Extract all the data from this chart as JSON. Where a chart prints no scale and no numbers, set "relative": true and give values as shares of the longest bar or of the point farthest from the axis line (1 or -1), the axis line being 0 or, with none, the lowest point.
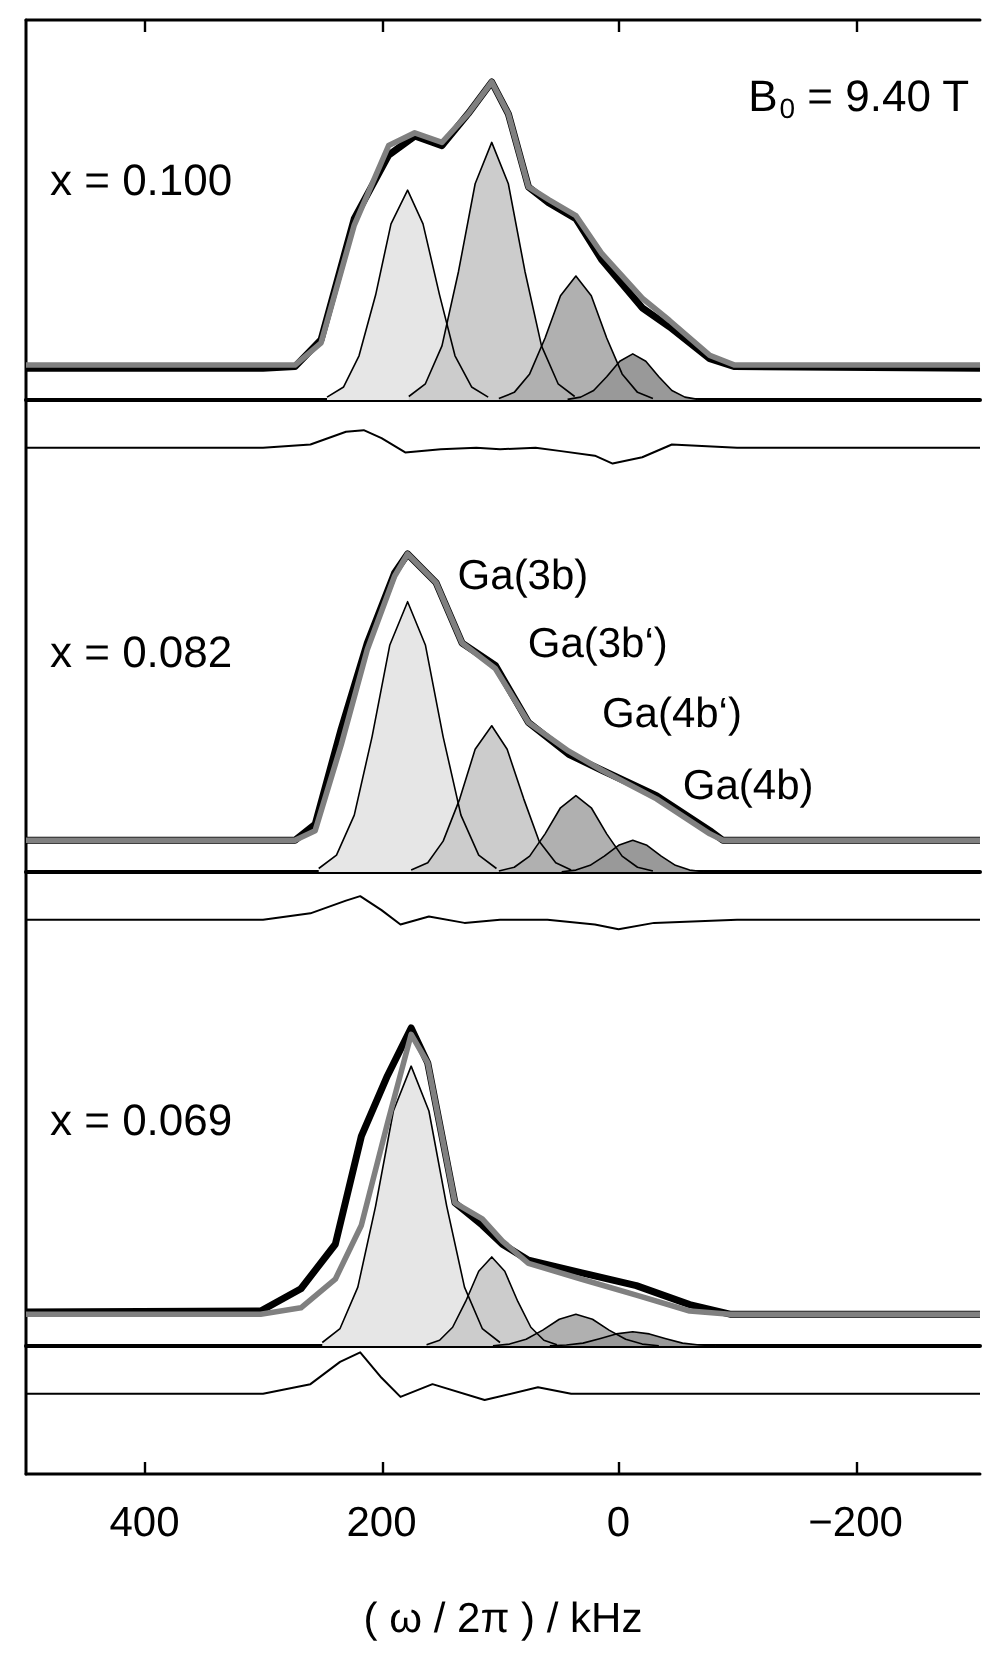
{
  "chart_data": [
    {
      "type": "line",
      "relative": true,
      "xlim": [
        500,
        -305
      ],
      "xticks": [
        {
          "value": 400,
          "label": null
        },
        {
          "value": 200,
          "label": null
        },
        {
          "value": 0,
          "label": null
        },
        {
          "value": -200,
          "label": null
        }
      ],
      "tick_labels": false,
      "legend": false,
      "grid": false,
      "annotations": [
        "x = 0.100",
        "B$_{0}$ = 9.40 T"
      ],
      "series": [
        {
          "type": "area",
          "color": "#e6e6e6",
          "x": [
            246,
            232,
            219,
            205,
            192,
            178,
            165,
            151,
            138,
            124,
            110
          ],
          "values": [
            0.009,
            0.041,
            0.139,
            0.33,
            0.554,
            0.66,
            0.554,
            0.33,
            0.139,
            0.041,
            0.009
          ]
        },
        {
          "type": "area",
          "color": "#cccccc",
          "x": [
            177,
            163,
            149,
            135,
            121,
            107,
            93,
            79,
            65,
            51,
            37
          ],
          "values": [
            0.011,
            0.051,
            0.17,
            0.405,
            0.68,
            0.81,
            0.68,
            0.405,
            0.17,
            0.051,
            0.011
          ]
        },
        {
          "type": "area",
          "color": "#b0b0b0",
          "x": [
            101,
            88,
            75,
            62,
            49,
            36,
            23,
            10,
            -3,
            -16,
            -29
          ],
          "values": [
            0.005,
            0.024,
            0.082,
            0.195,
            0.328,
            0.39,
            0.328,
            0.195,
            0.082,
            0.024,
            0.005
          ]
        },
        {
          "type": "area",
          "color": "#999999",
          "x": [
            43,
            32,
            21,
            10,
            -1,
            -12,
            -23,
            -34,
            -45,
            -56,
            -67
          ],
          "values": [
            0.002,
            0.009,
            0.03,
            0.073,
            0.122,
            0.145,
            0.122,
            0.073,
            0.03,
            0.009,
            0.002
          ]
        },
        {
          "type": "line",
          "color": "#000000",
          "x": [
            500,
            300,
            273,
            251,
            223,
            194,
            172,
            149,
            127,
            107,
            93,
            76,
            59,
            36,
            14,
            -20,
            -43,
            -77,
            -98,
            -305
          ],
          "values": [
            0.1,
            0.1,
            0.105,
            0.19,
            0.57,
            0.77,
            0.83,
            0.8,
            0.9,
            1.0,
            0.9,
            0.67,
            0.62,
            0.57,
            0.44,
            0.29,
            0.23,
            0.13,
            0.105,
            0.1
          ]
        },
        {
          "type": "line",
          "color": "#808080",
          "x": [
            500,
            300,
            273,
            251,
            223,
            194,
            172,
            149,
            127,
            107,
            93,
            76,
            59,
            36,
            14,
            -20,
            -43,
            -77,
            -98,
            -305
          ],
          "values": [
            0.11,
            0.11,
            0.11,
            0.18,
            0.55,
            0.8,
            0.84,
            0.81,
            0.9,
            1.0,
            0.9,
            0.67,
            0.63,
            0.58,
            0.46,
            0.32,
            0.25,
            0.14,
            0.11,
            0.11
          ]
        },
        {
          "type": "line",
          "color": "#000000",
          "x": [
            500,
            300,
            260,
            230,
            215,
            200,
            180,
            150,
            120,
            100,
            70,
            50,
            20,
            5,
            -20,
            -45,
            -100,
            -305
          ],
          "values": [
            -0.15,
            -0.15,
            -0.14,
            -0.1,
            -0.095,
            -0.12,
            -0.165,
            -0.155,
            -0.15,
            -0.155,
            -0.15,
            -0.16,
            -0.175,
            -0.2,
            -0.18,
            -0.14,
            -0.15,
            -0.15
          ]
        }
      ]
    },
    {
      "type": "line",
      "relative": true,
      "xlim": [
        500,
        -305
      ],
      "tick_labels": false,
      "legend": false,
      "grid": false,
      "annotations": [
        "x = 0.082"
      ],
      "series": [
        {
          "type": "area",
          "name": "Ga(3b)",
          "color": "#e6e6e6",
          "x": [
            253,
            238,
            223,
            208,
            193,
            178,
            163,
            148,
            133,
            118,
            103
          ],
          "values": [
            0.011,
            0.053,
            0.179,
            0.425,
            0.714,
            0.85,
            0.714,
            0.425,
            0.179,
            0.053,
            0.011
          ]
        },
        {
          "type": "area",
          "name": "Ga(3b‘)",
          "color": "#cccccc",
          "x": [
            175,
            161,
            148,
            134,
            121,
            107,
            94,
            80,
            67,
            53,
            40
          ],
          "values": [
            0.006,
            0.029,
            0.097,
            0.23,
            0.386,
            0.46,
            0.386,
            0.23,
            0.097,
            0.029,
            0.006
          ]
        },
        {
          "type": "area",
          "name": "Ga(4b‘)",
          "color": "#b0b0b0",
          "x": [
            101,
            88,
            75,
            62,
            49,
            36,
            23,
            10,
            -3,
            -16,
            -29
          ],
          "values": [
            0.003,
            0.015,
            0.05,
            0.12,
            0.202,
            0.24,
            0.202,
            0.12,
            0.05,
            0.015,
            0.003
          ]
        },
        {
          "type": "area",
          "name": "Ga(4b)",
          "color": "#999999",
          "x": [
            48,
            36,
            24,
            12,
            0,
            -12,
            -24,
            -36,
            -48,
            -60,
            -72
          ],
          "values": [
            0.001,
            0.006,
            0.021,
            0.05,
            0.084,
            0.1,
            0.084,
            0.05,
            0.021,
            0.006,
            0.001
          ]
        },
        {
          "type": "line",
          "color": "#000000",
          "x": [
            500,
            300,
            273,
            256,
            234,
            212,
            189,
            178,
            154,
            132,
            104,
            76,
            42,
            14,
            -32,
            -77,
            -88,
            -305
          ],
          "values": [
            0.1,
            0.1,
            0.1,
            0.15,
            0.45,
            0.72,
            0.94,
            1.0,
            0.91,
            0.72,
            0.65,
            0.47,
            0.37,
            0.32,
            0.24,
            0.13,
            0.1,
            0.1
          ]
        },
        {
          "type": "line",
          "color": "#808080",
          "x": [
            500,
            300,
            273,
            256,
            234,
            212,
            189,
            178,
            154,
            132,
            104,
            76,
            42,
            14,
            -32,
            -77,
            -88,
            -305
          ],
          "values": [
            0.1,
            0.1,
            0.1,
            0.13,
            0.4,
            0.7,
            0.93,
            1.0,
            0.91,
            0.72,
            0.64,
            0.47,
            0.38,
            0.32,
            0.23,
            0.12,
            0.1,
            0.1
          ]
        },
        {
          "type": "line",
          "color": "#000000",
          "x": [
            500,
            300,
            260,
            230,
            218,
            200,
            184,
            160,
            130,
            100,
            60,
            20,
            0,
            -30,
            -100,
            -305
          ],
          "values": [
            -0.15,
            -0.15,
            -0.13,
            -0.09,
            -0.076,
            -0.12,
            -0.165,
            -0.14,
            -0.16,
            -0.15,
            -0.15,
            -0.165,
            -0.18,
            -0.16,
            -0.15,
            -0.15
          ]
        }
      ]
    },
    {
      "type": "line",
      "relative": true,
      "xlim": [
        500,
        -305
      ],
      "xticks": [
        400,
        200,
        0,
        {
          "value": -200,
          "label": "−200"
        }
      ],
      "xlabel": "( ω / 2π ) / kHz",
      "tick_labels": "x",
      "legend": false,
      "grid": false,
      "annotations": [
        "x = 0.069"
      ],
      "series": [
        {
          "type": "area",
          "color": "#e6e6e6",
          "x": [
            250,
            235,
            220,
            205,
            190,
            175,
            160,
            145,
            130,
            115,
            100
          ],
          "values": [
            0.011,
            0.055,
            0.185,
            0.44,
            0.739,
            0.88,
            0.739,
            0.44,
            0.185,
            0.055,
            0.011
          ]
        },
        {
          "type": "area",
          "color": "#cccccc",
          "x": [
            162,
            151,
            140,
            129,
            118,
            107,
            96,
            85,
            74,
            63,
            52
          ],
          "values": [
            0.004,
            0.018,
            0.059,
            0.14,
            0.235,
            0.28,
            0.235,
            0.14,
            0.059,
            0.018,
            0.004
          ]
        },
        {
          "type": "area",
          "color": "#b0b0b0",
          "x": [
            106,
            92,
            78,
            64,
            50,
            36,
            22,
            8,
            -6,
            -20,
            -34
          ],
          "values": [
            0.001,
            0.006,
            0.021,
            0.05,
            0.084,
            0.1,
            0.084,
            0.05,
            0.021,
            0.006,
            0.001
          ]
        },
        {
          "type": "area",
          "color": "#999999",
          "x": [
            58,
            44,
            30,
            16,
            2,
            -12,
            -26,
            -40,
            -54,
            -68,
            -82
          ],
          "values": [
            0.001,
            0.003,
            0.009,
            0.023,
            0.038,
            0.045,
            0.038,
            0.023,
            0.009,
            0.003,
            0.001
          ]
        },
        {
          "type": "line",
          "color": "#000000",
          "x": [
            500,
            302,
            268,
            239,
            217,
            195,
            175,
            161,
            138,
            115,
            98,
            76,
            31,
            -15,
            -60,
            -94,
            -305
          ],
          "values": [
            0.107,
            0.11,
            0.18,
            0.32,
            0.66,
            0.85,
            1.0,
            0.89,
            0.45,
            0.38,
            0.32,
            0.27,
            0.23,
            0.19,
            0.13,
            0.1,
            0.1
          ]
        },
        {
          "type": "line",
          "color": "#808080",
          "x": [
            500,
            302,
            268,
            239,
            217,
            195,
            175,
            161,
            138,
            115,
            98,
            76,
            31,
            -15,
            -60,
            -94,
            -305
          ],
          "values": [
            0.1,
            0.1,
            0.12,
            0.21,
            0.38,
            0.7,
            0.98,
            0.89,
            0.45,
            0.4,
            0.33,
            0.26,
            0.21,
            0.16,
            0.11,
            0.1,
            0.1
          ]
        },
        {
          "type": "line",
          "color": "#000000",
          "x": [
            500,
            300,
            260,
            235,
            218,
            200,
            184,
            157,
            113,
            68,
            40,
            -305
          ],
          "values": [
            -0.15,
            -0.15,
            -0.12,
            -0.05,
            -0.02,
            -0.1,
            -0.16,
            -0.12,
            -0.17,
            -0.13,
            -0.15,
            -0.15
          ]
        }
      ]
    }
  ]
}
